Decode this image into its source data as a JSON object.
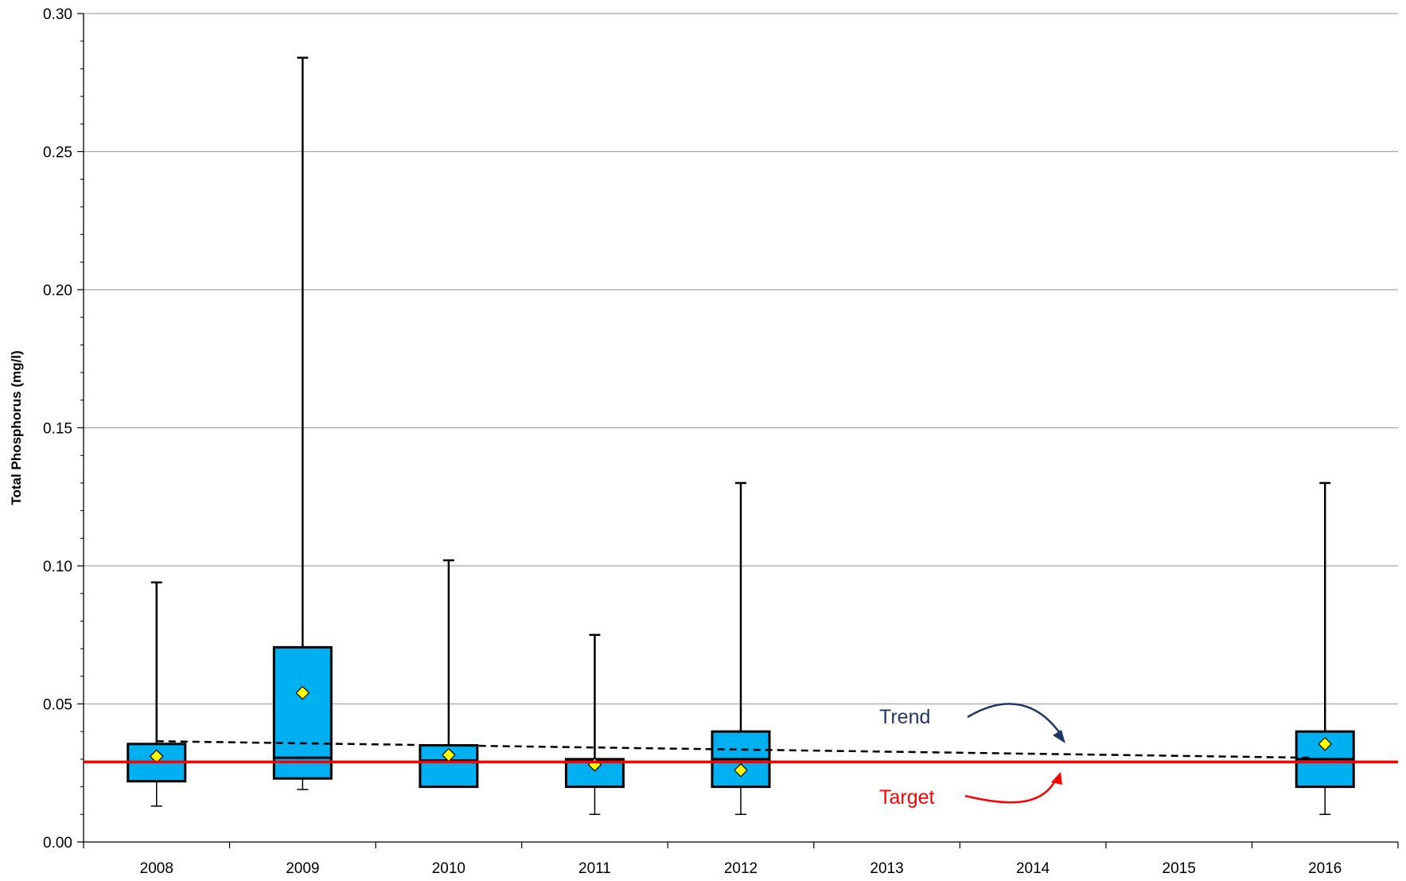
{
  "chart_data": {
    "type": "box",
    "ylabel": "Total Phosphorus (mg/l)",
    "ylim": [
      0,
      0.3
    ],
    "yticks": [
      "0.00",
      "0.05",
      "0.10",
      "0.15",
      "0.20",
      "0.25",
      "0.30"
    ],
    "ytick_values": [
      0,
      0.05,
      0.1,
      0.15,
      0.2,
      0.25,
      0.3
    ],
    "minor_tick_step": 0.01,
    "grid": true,
    "categories": [
      "2008",
      "2009",
      "2010",
      "2011",
      "2012",
      "2013",
      "2014",
      "2015",
      "2016"
    ],
    "boxes": [
      {
        "category": "2008",
        "min": 0.013,
        "q1": 0.022,
        "median": 0.029,
        "q3": 0.0355,
        "max": 0.094,
        "mean": 0.031
      },
      {
        "category": "2009",
        "min": 0.019,
        "q1": 0.023,
        "median": 0.0305,
        "q3": 0.0705,
        "max": 0.284,
        "mean": 0.054
      },
      {
        "category": "2010",
        "min": 0.02,
        "q1": 0.02,
        "median": 0.0295,
        "q3": 0.035,
        "max": 0.102,
        "mean": 0.0315
      },
      {
        "category": "2011",
        "min": 0.01,
        "q1": 0.02,
        "median": 0.0295,
        "q3": 0.03,
        "max": 0.075,
        "mean": 0.028
      },
      {
        "category": "2012",
        "min": 0.01,
        "q1": 0.02,
        "median": 0.03,
        "q3": 0.04,
        "max": 0.13,
        "mean": 0.026
      },
      {
        "category": "2016",
        "min": 0.01,
        "q1": 0.02,
        "median": 0.03,
        "q3": 0.04,
        "max": 0.13,
        "mean": 0.0355
      }
    ],
    "target": {
      "label": "Target",
      "value": 0.029,
      "color": "#ff0000"
    },
    "trend": {
      "label": "Trend",
      "start": {
        "x": "2008",
        "y": 0.0365
      },
      "end": {
        "x": "2016",
        "y": 0.0305
      },
      "color": "#000000"
    },
    "colors": {
      "box_fill": "#00b0f0",
      "box_stroke": "#000000",
      "mean_marker": "#ffff00",
      "grid": "#a6a6a6",
      "trend_label": "#1f3864",
      "target_label": "#ff0000"
    }
  }
}
